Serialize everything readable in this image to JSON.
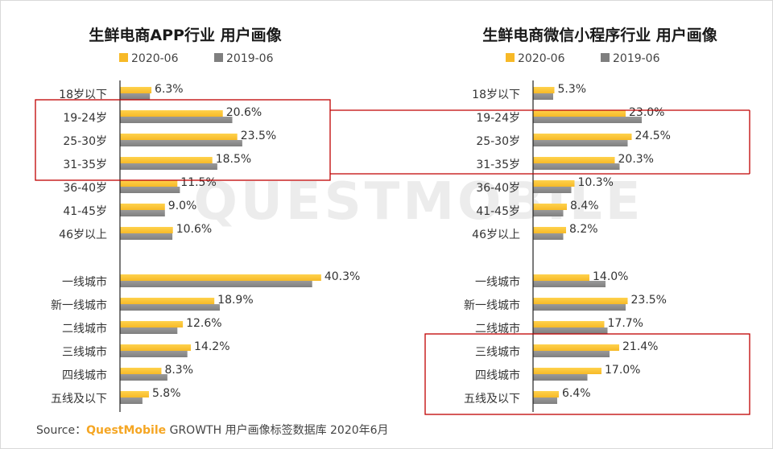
{
  "watermark": "QUESTMOBILE",
  "source": {
    "prefix": "Source：",
    "brand": "QuestMobile",
    "suffix": " GROWTH 用户画像标签数据库 2020年6月"
  },
  "colors": {
    "current": "#f7b927",
    "previous": "#7f7f7f",
    "highlight": "#c00000",
    "axis": "#222222"
  },
  "chart_data": [
    {
      "type": "bar",
      "orientation": "horizontal",
      "title": "生鲜电商APP行业 用户画像",
      "legend_position": "top",
      "categories": [
        "18岁以下",
        "19-24岁",
        "25-30岁",
        "31-35岁",
        "36-40岁",
        "41-45岁",
        "46岁以上",
        "一线城市",
        "新一线城市",
        "二线城市",
        "三线城市",
        "四线城市",
        "五线及以下"
      ],
      "series": [
        {
          "name": "2020-06",
          "values": [
            6.3,
            20.6,
            23.5,
            18.5,
            11.5,
            9.0,
            10.6,
            40.3,
            18.9,
            12.6,
            14.2,
            8.3,
            5.8
          ],
          "labels": [
            "6.3%",
            "20.6%",
            "23.5%",
            "18.5%",
            "11.5%",
            "9.0%",
            "10.6%",
            "40.3%",
            "18.9%",
            "12.6%",
            "14.2%",
            "8.3%",
            "5.8%"
          ]
        },
        {
          "name": "2019-06",
          "values": [
            6.0,
            22.5,
            24.5,
            19.5,
            12.0,
            9.0,
            10.5,
            38.5,
            20.0,
            11.5,
            13.5,
            9.5,
            4.5
          ]
        }
      ],
      "highlight_categories": [
        "19-24岁",
        "25-30岁",
        "31-35岁"
      ]
    },
    {
      "type": "bar",
      "orientation": "horizontal",
      "title": "生鲜电商微信小程序行业 用户画像",
      "legend_position": "top",
      "categories": [
        "18岁以下",
        "19-24岁",
        "25-30岁",
        "31-35岁",
        "36-40岁",
        "41-45岁",
        "46岁以上",
        "一线城市",
        "新一线城市",
        "二线城市",
        "三线城市",
        "四线城市",
        "五线及以下"
      ],
      "series": [
        {
          "name": "2020-06",
          "values": [
            5.3,
            23.0,
            24.5,
            20.3,
            10.3,
            8.4,
            8.2,
            14.0,
            23.5,
            17.7,
            21.4,
            17.0,
            6.4
          ],
          "labels": [
            "5.3%",
            "23.0%",
            "24.5%",
            "20.3%",
            "10.3%",
            "8.4%",
            "8.2%",
            "14.0%",
            "23.5%",
            "17.7%",
            "21.4%",
            "17.0%",
            "6.4%"
          ]
        },
        {
          "name": "2019-06",
          "values": [
            5.0,
            27.0,
            23.5,
            21.5,
            9.5,
            7.5,
            7.5,
            18.0,
            23.0,
            18.5,
            19.0,
            13.5,
            6.0
          ]
        }
      ],
      "highlight_categories": [
        "三线城市",
        "四线城市",
        "五线及以下"
      ]
    }
  ]
}
